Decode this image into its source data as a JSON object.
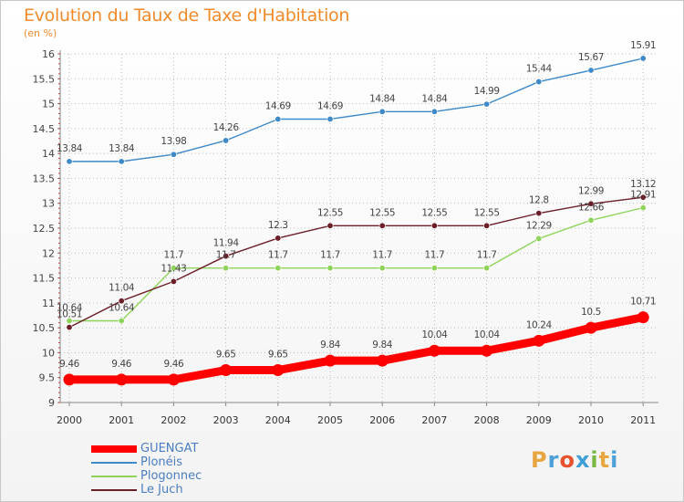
{
  "header": {
    "title": "Evolution du Taux de Taxe d'Habitation",
    "subtitle": "(en %)"
  },
  "logo": {
    "text": "Proxiti",
    "colors": [
      "#e8a640",
      "#4da0d8",
      "#e6512e",
      "#3f9fd8",
      "#78b843",
      "#e8a640",
      "#4da0d8"
    ]
  },
  "chart_data": {
    "type": "line",
    "title": "Evolution du Taux de Taxe d'Habitation",
    "ylabel": "(en %)",
    "xlabel": "",
    "x": [
      "2000",
      "2001",
      "2002",
      "2003",
      "2004",
      "2005",
      "2006",
      "2007",
      "2008",
      "2009",
      "2010",
      "2011"
    ],
    "ylim": [
      9,
      16
    ],
    "yticks": [
      "9",
      "9.5",
      "10",
      "10.5",
      "11",
      "11.5",
      "12",
      "12.5",
      "13",
      "13.5",
      "14",
      "14.5",
      "15",
      "15.5",
      "16"
    ],
    "grid": true,
    "legend_position": "bottom-left",
    "series": [
      {
        "name": "GUENGAT",
        "color": "#ff0000",
        "values": [
          9.46,
          9.46,
          9.46,
          9.65,
          9.65,
          9.84,
          9.84,
          10.04,
          10.04,
          10.24,
          10.5,
          10.71
        ],
        "labels": [
          "9.46",
          "9.46",
          "9.46",
          "9.65",
          "9.65",
          "9.84",
          "9.84",
          "10.04",
          "10.04",
          "10.24",
          "10.5",
          "10.71"
        ]
      },
      {
        "name": "Plonéis",
        "color": "#3e8ac8",
        "values": [
          13.84,
          13.84,
          13.98,
          14.26,
          14.69,
          14.69,
          14.84,
          14.84,
          14.99,
          15.44,
          15.67,
          15.91
        ],
        "labels": [
          "13.84",
          "13.84",
          "13.98",
          "14.26",
          "14.69",
          "14.69",
          "14.84",
          "14.84",
          "14.99",
          "15.44",
          "15.67",
          "15.91"
        ]
      },
      {
        "name": "Plogonnec",
        "color": "#8ed45a",
        "values": [
          10.64,
          10.64,
          11.7,
          11.7,
          11.7,
          11.7,
          11.7,
          11.7,
          11.7,
          12.29,
          12.66,
          12.91
        ],
        "labels": [
          "10.64",
          "10.64",
          "11.7",
          "11.7",
          "11.7",
          "11.7",
          "11.7",
          "11.7",
          "11.7",
          "12.29",
          "12.66",
          "12.91"
        ]
      },
      {
        "name": "Le Juch",
        "color": "#6b1f28",
        "values": [
          10.51,
          11.04,
          11.43,
          11.94,
          12.3,
          12.55,
          12.55,
          12.55,
          12.55,
          12.8,
          12.99,
          13.12
        ],
        "labels": [
          "10.51",
          "11.04",
          "11.43",
          "11.94",
          "12.3",
          "12.55",
          "12.55",
          "12.55",
          "12.55",
          "12.8",
          "12.99",
          "13.12"
        ]
      }
    ]
  }
}
